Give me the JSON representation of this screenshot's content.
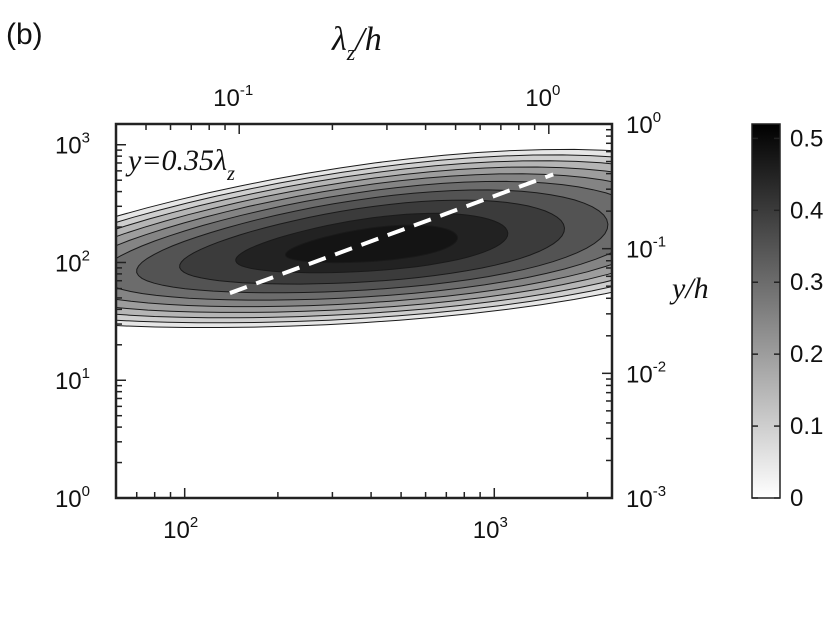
{
  "panel_label": "(b)",
  "chart_data": {
    "type": "contour",
    "top_axis": {
      "label_main": "λ",
      "label_sub": "z",
      "label_tail": "/h",
      "scale": "log",
      "range": [
        0.04,
        1.6
      ],
      "ticks": [
        {
          "base": "10",
          "exp": "-1",
          "value": 0.1
        },
        {
          "base": "10",
          "exp": "0",
          "value": 1
        }
      ]
    },
    "bottom_axis": {
      "label": "",
      "scale": "log",
      "range": [
        60,
        2400
      ],
      "ticks": [
        {
          "base": "10",
          "exp": "2",
          "value": 100
        },
        {
          "base": "10",
          "exp": "3",
          "value": 1000
        }
      ]
    },
    "left_axis": {
      "label": "",
      "scale": "log",
      "range": [
        1,
        1500
      ],
      "ticks": [
        {
          "base": "10",
          "exp": "0",
          "value": 1
        },
        {
          "base": "10",
          "exp": "1",
          "value": 10
        },
        {
          "base": "10",
          "exp": "2",
          "value": 100
        },
        {
          "base": "10",
          "exp": "3",
          "value": 1000
        }
      ]
    },
    "right_axis": {
      "label": "y/h",
      "scale": "log",
      "range": [
        0.001,
        1
      ],
      "ticks": [
        {
          "base": "10",
          "exp": "0",
          "value": 1
        },
        {
          "base": "10",
          "exp": "-1",
          "value": 0.1
        },
        {
          "base": "10",
          "exp": "-2",
          "value": 0.01
        },
        {
          "base": "10",
          "exp": "-3",
          "value": 0.001
        }
      ]
    },
    "contour_levels": [
      0.05,
      0.1,
      0.15,
      0.2,
      0.25,
      0.3,
      0.35,
      0.4,
      0.45
    ],
    "peak": {
      "x": 400,
      "y": 140,
      "value": 0.5
    },
    "reference_line": {
      "label_main": "y=0.35λ",
      "label_sub": "z",
      "points": [
        [
          140,
          55
        ],
        [
          1550,
          560
        ]
      ],
      "style": "dashed",
      "color": "#ffffff"
    },
    "colorbar": {
      "range": [
        0,
        0.52
      ],
      "ticks": [
        {
          "label": "0.5",
          "value": 0.5
        },
        {
          "label": "0.4",
          "value": 0.4
        },
        {
          "label": "0.3",
          "value": 0.3
        },
        {
          "label": "0.2",
          "value": 0.2
        },
        {
          "label": "0.1",
          "value": 0.1
        },
        {
          "label": "0",
          "value": 0
        }
      ],
      "colormap": "gray-reversed"
    },
    "colors": {
      "max": "#000000",
      "min": "#ffffff",
      "axis": "#222222"
    }
  }
}
